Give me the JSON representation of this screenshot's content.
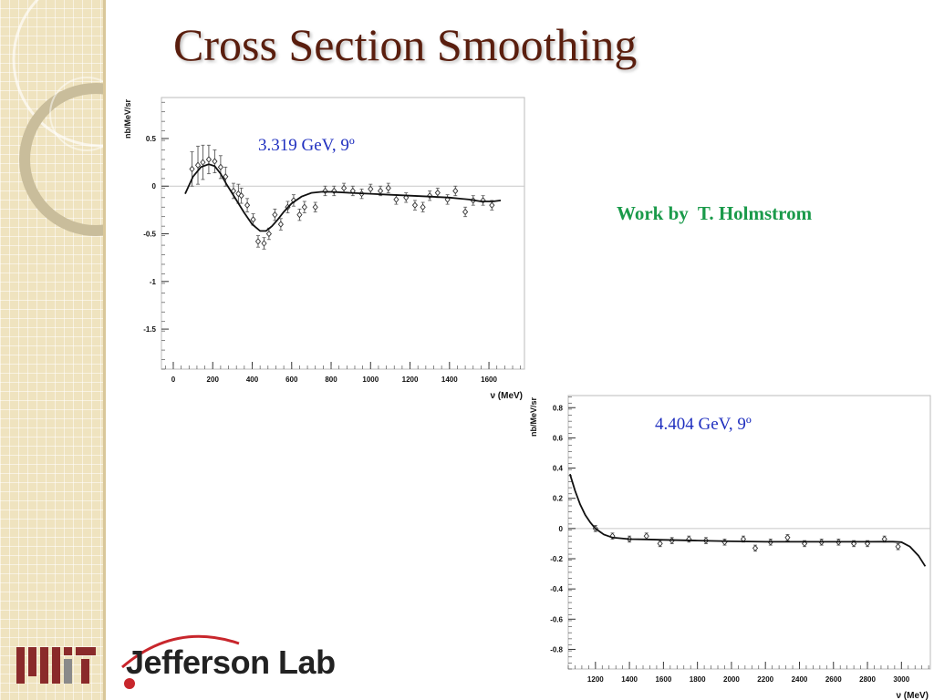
{
  "slide": {
    "title": "Cross Section Smoothing",
    "credit": "Work by  T. Holmstrom",
    "logos": {
      "mit_icon": "mit-logo-icon",
      "jlab_text": "Jefferson Lab"
    }
  },
  "colors": {
    "title": "#5a1e0e",
    "credit": "#1a9a4a",
    "annotation": "#1f2fbf",
    "sidebar": "#efe3bf"
  },
  "chart_data": [
    {
      "type": "scatter",
      "annotation": "3.319 GeV, 9º",
      "xlabel": "ν (MeV)",
      "ylabel": "nb/MeV/sr",
      "xlim": [
        -60,
        1780
      ],
      "ylim": [
        -1.92,
        0.93
      ],
      "xticks": [
        0,
        200,
        400,
        600,
        800,
        1000,
        1200,
        1400,
        1600
      ],
      "yticks": [
        0.5,
        0,
        -0.5,
        -1,
        -1.5
      ],
      "xtick_labels": [
        "0",
        "200",
        "400",
        "600",
        "800",
        "1000",
        "1200",
        "1400",
        "1600"
      ],
      "ytick_labels": [
        "0.5",
        "0",
        "-0.5",
        "-1",
        "-1.5"
      ],
      "zero_line": true,
      "series": [
        {
          "kind": "points",
          "x": [
            95,
            125,
            150,
            180,
            210,
            240,
            265,
            305,
            330,
            345,
            375,
            405,
            430,
            460,
            485,
            515,
            545,
            580,
            610,
            640,
            665,
            720,
            770,
            815,
            865,
            910,
            955,
            1000,
            1050,
            1090,
            1130,
            1180,
            1225,
            1265,
            1300,
            1340,
            1390,
            1430,
            1480,
            1520,
            1570,
            1615
          ],
          "y": [
            0.18,
            0.22,
            0.25,
            0.28,
            0.26,
            0.2,
            0.1,
            -0.05,
            -0.08,
            -0.1,
            -0.2,
            -0.35,
            -0.58,
            -0.6,
            -0.5,
            -0.3,
            -0.4,
            -0.22,
            -0.15,
            -0.3,
            -0.22,
            -0.22,
            -0.05,
            -0.05,
            -0.02,
            -0.05,
            -0.08,
            -0.03,
            -0.05,
            -0.02,
            -0.14,
            -0.12,
            -0.2,
            -0.22,
            -0.1,
            -0.07,
            -0.14,
            -0.05,
            -0.27,
            -0.15,
            -0.15,
            -0.2
          ],
          "err": [
            0.18,
            0.2,
            0.18,
            0.15,
            0.12,
            0.12,
            0.1,
            0.08,
            0.1,
            0.08,
            0.07,
            0.06,
            0.06,
            0.06,
            0.06,
            0.06,
            0.06,
            0.06,
            0.06,
            0.06,
            0.06,
            0.05,
            0.05,
            0.05,
            0.05,
            0.05,
            0.05,
            0.05,
            0.05,
            0.05,
            0.05,
            0.05,
            0.05,
            0.05,
            0.05,
            0.05,
            0.05,
            0.05,
            0.05,
            0.05,
            0.05,
            0.05
          ]
        },
        {
          "kind": "curve",
          "x": [
            60,
            100,
            140,
            180,
            210,
            240,
            270,
            300,
            330,
            360,
            400,
            440,
            470,
            500,
            530,
            560,
            600,
            650,
            700,
            750,
            800,
            900,
            1000,
            1100,
            1200,
            1300,
            1400,
            1500,
            1560,
            1620,
            1660
          ],
          "y": [
            -0.08,
            0.1,
            0.2,
            0.23,
            0.21,
            0.13,
            0.02,
            -0.08,
            -0.18,
            -0.28,
            -0.4,
            -0.47,
            -0.47,
            -0.42,
            -0.35,
            -0.27,
            -0.18,
            -0.11,
            -0.07,
            -0.06,
            -0.06,
            -0.07,
            -0.08,
            -0.09,
            -0.1,
            -0.11,
            -0.12,
            -0.14,
            -0.16,
            -0.16,
            -0.15
          ]
        }
      ]
    },
    {
      "type": "scatter",
      "annotation": "4.404 GeV, 9º",
      "xlabel": "ν (MeV)",
      "ylabel": "nb/MeV/sr",
      "xlim": [
        1040,
        3170
      ],
      "ylim": [
        -0.93,
        0.88
      ],
      "xticks": [
        1200,
        1400,
        1600,
        1800,
        2000,
        2200,
        2400,
        2600,
        2800,
        3000
      ],
      "yticks": [
        0.8,
        0.6,
        0.4,
        0.2,
        0,
        -0.2,
        -0.4,
        -0.6,
        -0.8
      ],
      "xtick_labels": [
        "1200",
        "1400",
        "1600",
        "1800",
        "2000",
        "2200",
        "2400",
        "2600",
        "2800",
        "3000"
      ],
      "ytick_labels": [
        "0.8",
        "0.6",
        "0.4",
        "0.2",
        "0",
        "-0.2",
        "-0.4",
        "-0.6",
        "-0.8"
      ],
      "zero_line": true,
      "series": [
        {
          "kind": "points",
          "x": [
            1200,
            1300,
            1400,
            1500,
            1580,
            1650,
            1750,
            1850,
            1960,
            2070,
            2140,
            2230,
            2330,
            2430,
            2530,
            2630,
            2720,
            2800,
            2900,
            2980
          ],
          "y": [
            0.0,
            -0.05,
            -0.07,
            -0.05,
            -0.1,
            -0.08,
            -0.07,
            -0.08,
            -0.09,
            -0.07,
            -0.13,
            -0.09,
            -0.06,
            -0.1,
            -0.09,
            -0.09,
            -0.1,
            -0.1,
            -0.07,
            -0.12
          ],
          "err": [
            0.02,
            0.02,
            0.02,
            0.02,
            0.02,
            0.02,
            0.02,
            0.02,
            0.02,
            0.02,
            0.02,
            0.02,
            0.02,
            0.02,
            0.02,
            0.02,
            0.02,
            0.02,
            0.02,
            0.02
          ]
        },
        {
          "kind": "curve",
          "x": [
            1050,
            1080,
            1110,
            1140,
            1170,
            1200,
            1250,
            1300,
            1400,
            1500,
            1600,
            1800,
            2000,
            2200,
            2400,
            2600,
            2800,
            2900,
            2950,
            3000,
            3050,
            3100,
            3140
          ],
          "y": [
            0.36,
            0.25,
            0.16,
            0.09,
            0.04,
            0.0,
            -0.04,
            -0.06,
            -0.07,
            -0.072,
            -0.075,
            -0.08,
            -0.085,
            -0.088,
            -0.088,
            -0.088,
            -0.088,
            -0.087,
            -0.087,
            -0.09,
            -0.12,
            -0.18,
            -0.25
          ]
        }
      ]
    }
  ]
}
